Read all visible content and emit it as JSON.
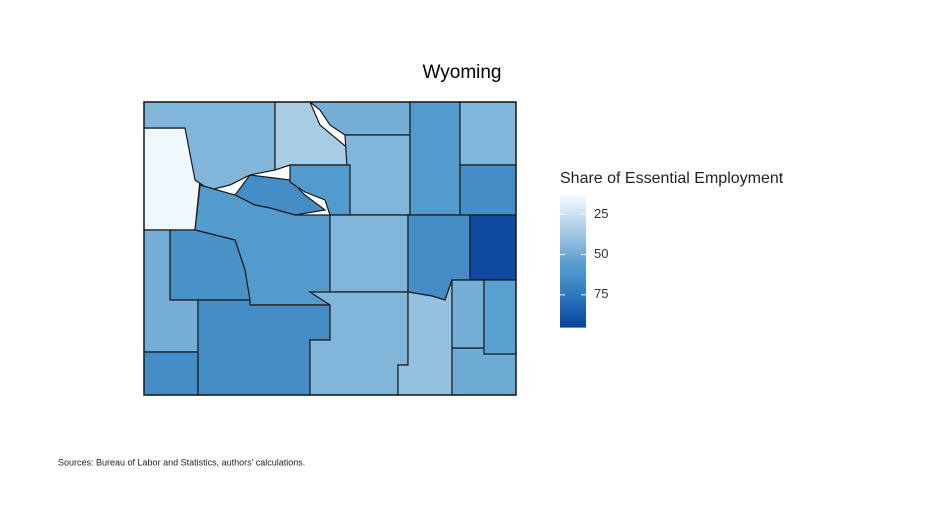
{
  "chart_data": {
    "type": "choropleth",
    "title": "Wyoming",
    "legend_title": "Share of Essential Employment",
    "values": [
      15,
      45,
      35,
      65,
      48,
      45,
      58,
      58,
      45,
      65,
      58,
      62,
      48,
      65,
      65,
      45,
      45,
      65,
      92,
      40,
      50,
      48,
      55
    ],
    "colorlim": [
      13,
      95
    ],
    "colorticks": [
      25,
      50,
      75
    ],
    "source": "Sources: Bureau of Labor and Statistics, authors’ calculations."
  }
}
